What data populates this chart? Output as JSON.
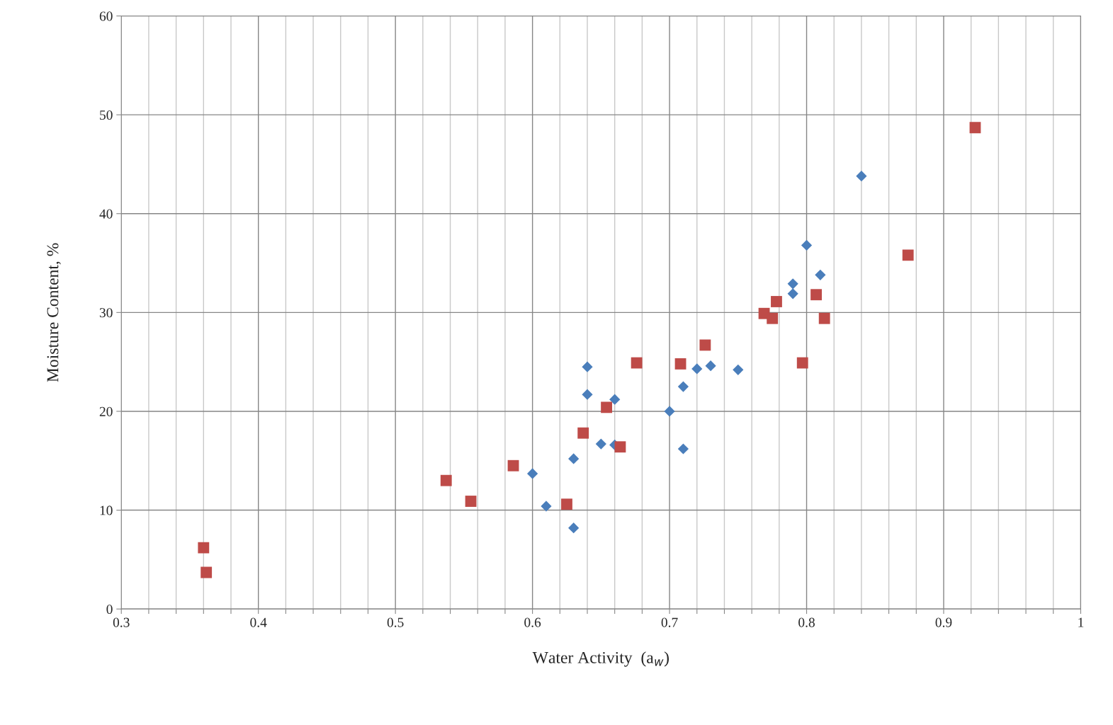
{
  "chart_data": {
    "type": "scatter",
    "xlabel": "Water Activity  (a$_{w}$)",
    "ylabel": "Moisture Content, %",
    "xlim": [
      0.3,
      1
    ],
    "ylim": [
      0,
      60
    ],
    "xticks": [
      0.3,
      {
        "value": 0.32,
        "label": null
      },
      {
        "value": 0.34,
        "label": null
      },
      {
        "value": 0.36,
        "label": null
      },
      {
        "value": 0.38,
        "label": null
      },
      0.4,
      {
        "value": 0.42,
        "label": null
      },
      {
        "value": 0.44,
        "label": null
      },
      {
        "value": 0.46,
        "label": null
      },
      {
        "value": 0.48,
        "label": null
      },
      0.5,
      {
        "value": 0.52,
        "label": null
      },
      {
        "value": 0.54,
        "label": null
      },
      {
        "value": 0.56,
        "label": null
      },
      {
        "value": 0.58,
        "label": null
      },
      0.6,
      {
        "value": 0.62,
        "label": null
      },
      {
        "value": 0.64,
        "label": null
      },
      {
        "value": 0.66,
        "label": null
      },
      {
        "value": 0.68,
        "label": null
      },
      0.7,
      {
        "value": 0.72,
        "label": null
      },
      {
        "value": 0.74,
        "label": null
      },
      {
        "value": 0.76,
        "label": null
      },
      {
        "value": 0.78,
        "label": null
      },
      0.8,
      {
        "value": 0.82,
        "label": null
      },
      {
        "value": 0.84,
        "label": null
      },
      {
        "value": 0.86,
        "label": null
      },
      {
        "value": 0.88,
        "label": null
      },
      0.9,
      {
        "value": 0.92,
        "label": null
      },
      {
        "value": 0.94,
        "label": null
      },
      {
        "value": 0.96,
        "label": null
      },
      {
        "value": 0.98,
        "label": null
      },
      1
    ],
    "yticks": [
      0,
      10,
      20,
      30,
      40,
      50,
      60
    ],
    "grid": true,
    "legend": false,
    "series": [
      {
        "color": "#4a7ebb",
        "marker": "diamond",
        "x": [
          0.6,
          0.61,
          0.63,
          0.63,
          0.64,
          0.64,
          0.65,
          0.66,
          0.66,
          0.7,
          0.71,
          0.71,
          0.72,
          0.73,
          0.75,
          0.79,
          0.79,
          0.8,
          0.81,
          0.84
        ],
        "values": [
          13.7,
          10.4,
          15.2,
          8.2,
          24.5,
          21.7,
          16.7,
          21.2,
          16.6,
          20.0,
          22.5,
          16.2,
          24.3,
          24.6,
          24.2,
          32.9,
          31.9,
          36.8,
          33.8,
          43.8
        ]
      },
      {
        "color": "#be4b48",
        "marker": "square",
        "x": [
          0.36,
          0.362,
          0.537,
          0.555,
          0.586,
          0.625,
          0.637,
          0.654,
          0.664,
          0.676,
          0.708,
          0.726,
          0.769,
          0.775,
          0.778,
          0.797,
          0.807,
          0.813,
          0.874,
          0.923
        ],
        "values": [
          6.2,
          3.7,
          13.0,
          10.9,
          14.5,
          10.6,
          17.8,
          20.4,
          16.4,
          24.9,
          24.8,
          26.7,
          29.9,
          29.4,
          31.1,
          24.9,
          31.8,
          29.4,
          35.8,
          48.7
        ]
      }
    ]
  }
}
